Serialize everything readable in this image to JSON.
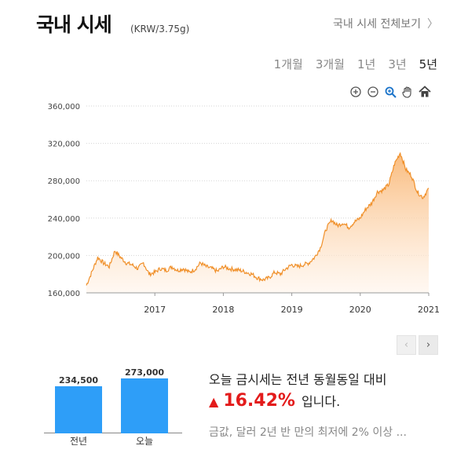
{
  "header": {
    "title": "국내 시세",
    "unit": "(KRW/3.75g)",
    "more_label": "국내 시세 전체보기",
    "more_icon": "chevron-right-icon"
  },
  "periods": [
    {
      "label": "1개월",
      "active": false
    },
    {
      "label": "3개월",
      "active": false
    },
    {
      "label": "1년",
      "active": false
    },
    {
      "label": "3년",
      "active": false
    },
    {
      "label": "5년",
      "active": true
    }
  ],
  "toolbar": [
    "zoom-in-icon",
    "zoom-out-icon",
    "magnify-icon",
    "pan-hand-icon",
    "home-icon"
  ],
  "colors": {
    "line": "#f0902a",
    "fill_top": "#f9b877",
    "fill_bottom": "#fff4ea",
    "accent_up": "#e31b1b",
    "bar": "#2e9ef8"
  },
  "chart_data": {
    "type": "area",
    "x_ticks": [
      "2017",
      "2018",
      "2019",
      "2020",
      "2021"
    ],
    "y_ticks": [
      "360,000",
      "320,000",
      "280,000",
      "240,000",
      "200,000",
      "160,000"
    ],
    "ylim": [
      160000,
      360000
    ],
    "xlim": [
      "2016-01",
      "2021-01"
    ],
    "grid": "horizontal-dotted",
    "series": [
      {
        "x": [
          "2016-01",
          "2016-02",
          "2016-03",
          "2016-04",
          "2016-05",
          "2016-06",
          "2016-07",
          "2016-08",
          "2016-09",
          "2016-10",
          "2016-11",
          "2016-12",
          "2017-01",
          "2017-02",
          "2017-03",
          "2017-04",
          "2017-05",
          "2017-06",
          "2017-07",
          "2017-08",
          "2017-09",
          "2017-10",
          "2017-11",
          "2017-12",
          "2018-01",
          "2018-02",
          "2018-03",
          "2018-04",
          "2018-05",
          "2018-06",
          "2018-07",
          "2018-08",
          "2018-09",
          "2018-10",
          "2018-11",
          "2018-12",
          "2019-01",
          "2019-02",
          "2019-03",
          "2019-04",
          "2019-05",
          "2019-06",
          "2019-07",
          "2019-08",
          "2019-09",
          "2019-10",
          "2019-11",
          "2019-12",
          "2020-01",
          "2020-02",
          "2020-03",
          "2020-04",
          "2020-05",
          "2020-06",
          "2020-07",
          "2020-08",
          "2020-09",
          "2020-10",
          "2020-11",
          "2020-12",
          "2021-01"
        ],
        "values": [
          168000,
          183000,
          198000,
          192000,
          188000,
          205000,
          198000,
          192000,
          190000,
          186000,
          192000,
          180000,
          182000,
          186000,
          184000,
          188000,
          184000,
          186000,
          182000,
          185000,
          192000,
          188000,
          186000,
          183000,
          188000,
          186000,
          185000,
          184000,
          182000,
          180000,
          176000,
          174000,
          176000,
          182000,
          180000,
          186000,
          190000,
          188000,
          190000,
          192000,
          198000,
          208000,
          228000,
          238000,
          232000,
          235000,
          230000,
          236000,
          240000,
          250000,
          256000,
          268000,
          270000,
          276000,
          298000,
          310000,
          292000,
          285000,
          268000,
          262000,
          272000
        ]
      }
    ]
  },
  "pager": {
    "prev": "‹",
    "next": "›"
  },
  "comparison": {
    "bars": [
      {
        "label": "전년",
        "value": 234500,
        "display": "234,500"
      },
      {
        "label": "오늘",
        "value": 273000,
        "display": "273,000"
      }
    ]
  },
  "summary": {
    "line1": "오늘 금시세는 전년 동월동일 대비",
    "arrow": "▲",
    "percent": "16.42%",
    "suffix": "입니다.",
    "news": "금값, 달러 2년 반 만의 최저에 2% 이상 ..."
  }
}
